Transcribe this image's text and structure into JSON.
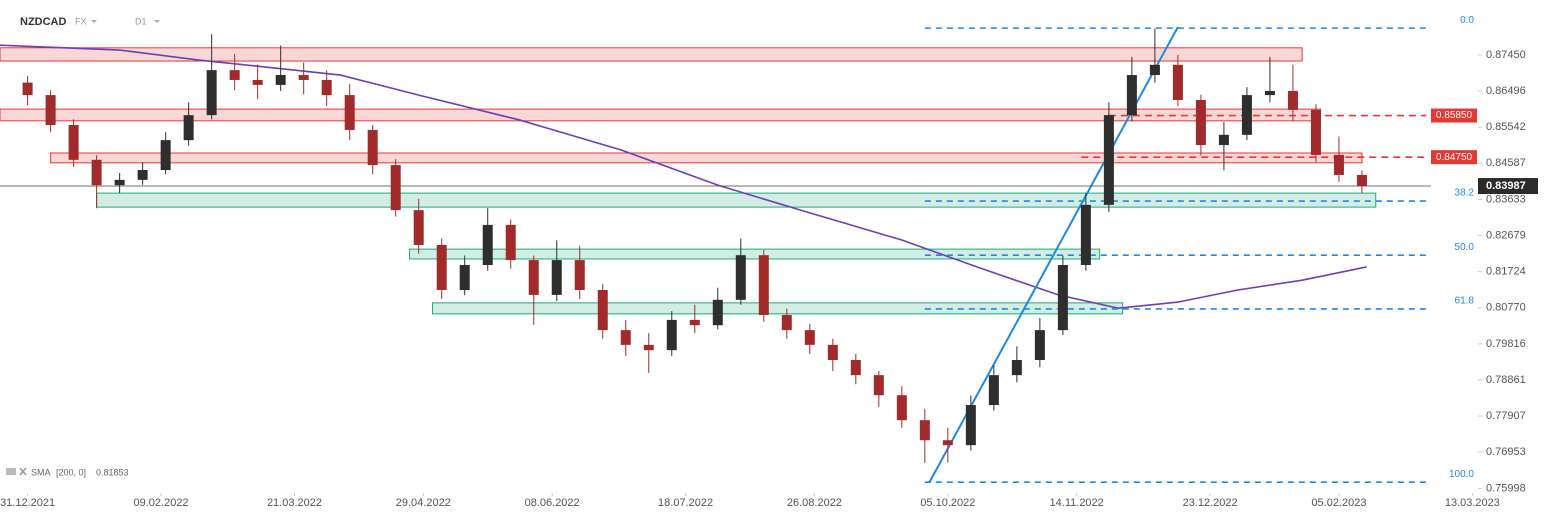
{
  "chart_data": {
    "type": "candlestick",
    "symbol": "NZDCAD",
    "market": "FX",
    "interval": "D1",
    "x": [
      0,
      5,
      10,
      15,
      20,
      25,
      30,
      35,
      40,
      45,
      50,
      55,
      60,
      65,
      70,
      75,
      80,
      85,
      90,
      95,
      100,
      105,
      110,
      115,
      120,
      125,
      130,
      135,
      140,
      145,
      150,
      155,
      160,
      165,
      170,
      175,
      180,
      185,
      190,
      195,
      200,
      205,
      210,
      215,
      220,
      225,
      230,
      235,
      240,
      245,
      250,
      255,
      260,
      265,
      270,
      275,
      280,
      285,
      290
    ],
    "open": [
      0.8672,
      0.8639,
      0.856,
      0.8468,
      0.8401,
      0.8415,
      0.8441,
      0.852,
      0.8586,
      0.8705,
      0.8679,
      0.8666,
      0.8692,
      0.8679,
      0.8639,
      0.8547,
      0.8454,
      0.8335,
      0.8243,
      0.8124,
      0.819,
      0.8296,
      0.8203,
      0.8111,
      0.8203,
      0.8124,
      0.8018,
      0.7979,
      0.7965,
      0.8045,
      0.8031,
      0.8098,
      0.8216,
      0.8058,
      0.8018,
      0.7979,
      0.7939,
      0.7899,
      0.7846,
      0.778,
      0.7727,
      0.7714,
      0.782,
      0.7899,
      0.7939,
      0.8018,
      0.819,
      0.8349,
      0.8586,
      0.8692,
      0.8719,
      0.8626,
      0.8507,
      0.8534,
      0.8639,
      0.865,
      0.86,
      0.8481,
      0.8428
    ],
    "high": [
      0.869,
      0.8652,
      0.8575,
      0.848,
      0.8433,
      0.8462,
      0.8541,
      0.862,
      0.88,
      0.8748,
      0.872,
      0.877,
      0.8725,
      0.8705,
      0.8668,
      0.856,
      0.847,
      0.8365,
      0.826,
      0.8215,
      0.834,
      0.831,
      0.8215,
      0.8255,
      0.824,
      0.814,
      0.8045,
      0.801,
      0.8068,
      0.8085,
      0.813,
      0.826,
      0.823,
      0.8075,
      0.8035,
      0.7995,
      0.7955,
      0.791,
      0.787,
      0.781,
      0.776,
      0.7845,
      0.7925,
      0.7975,
      0.805,
      0.8215,
      0.838,
      0.862,
      0.874,
      0.8815,
      0.8745,
      0.864,
      0.8568,
      0.866,
      0.874,
      0.872,
      0.8615,
      0.853,
      0.844
    ],
    "low": [
      0.8612,
      0.8541,
      0.8449,
      0.834,
      0.838,
      0.8402,
      0.843,
      0.8505,
      0.8575,
      0.8652,
      0.8628,
      0.865,
      0.8641,
      0.861,
      0.852,
      0.843,
      0.8318,
      0.822,
      0.81,
      0.811,
      0.8175,
      0.818,
      0.8032,
      0.8095,
      0.81,
      0.7995,
      0.795,
      0.7905,
      0.795,
      0.801,
      0.802,
      0.8085,
      0.804,
      0.7995,
      0.7955,
      0.791,
      0.7875,
      0.7815,
      0.776,
      0.7667,
      0.7668,
      0.77,
      0.7805,
      0.788,
      0.792,
      0.8005,
      0.8175,
      0.833,
      0.857,
      0.8672,
      0.861,
      0.848,
      0.844,
      0.852,
      0.862,
      0.857,
      0.8462,
      0.841,
      0.838
    ],
    "close": [
      0.8639,
      0.856,
      0.8468,
      0.8401,
      0.8415,
      0.8441,
      0.852,
      0.8586,
      0.8705,
      0.8679,
      0.8666,
      0.8692,
      0.8679,
      0.8639,
      0.8547,
      0.8454,
      0.8335,
      0.8243,
      0.8124,
      0.819,
      0.8296,
      0.8203,
      0.8111,
      0.8203,
      0.8124,
      0.8018,
      0.7979,
      0.7965,
      0.8045,
      0.8031,
      0.8098,
      0.8216,
      0.8058,
      0.8018,
      0.7979,
      0.7939,
      0.7899,
      0.7846,
      0.778,
      0.7727,
      0.7714,
      0.782,
      0.7899,
      0.7939,
      0.8018,
      0.819,
      0.8349,
      0.8586,
      0.8692,
      0.8719,
      0.8626,
      0.8507,
      0.8534,
      0.8639,
      0.865,
      0.86,
      0.8481,
      0.8428,
      0.83987
    ],
    "up_color": "#2e2e2e",
    "down_color": "#a12b2b",
    "xlim": [
      -6,
      330
    ],
    "xticks": [
      {
        "value": 0,
        "label": "31.12.2021"
      },
      {
        "value": 29,
        "label": "09.02.2022"
      },
      {
        "value": 58,
        "label": "21.03.2022"
      },
      {
        "value": 86,
        "label": "29.04.2022"
      },
      {
        "value": 114,
        "label": "08.06.2022"
      },
      {
        "value": 143,
        "label": "18.07.2022"
      },
      {
        "value": 171,
        "label": "26.08.2022"
      },
      {
        "value": 200,
        "label": "05.10.2022"
      },
      {
        "value": 228,
        "label": "14.11.2022"
      },
      {
        "value": 257,
        "label": "23.12.2022"
      },
      {
        "value": 285,
        "label": "05.02.2023"
      },
      {
        "value": 314,
        "label": "13.03.2023"
      }
    ],
    "ylim": [
      0.75902,
      0.88903
    ],
    "yticks": [
      {
        "value": 0.8745,
        "label": "0.87450"
      },
      0.86496,
      0.85542,
      0.84587,
      0.83633,
      0.82679,
      0.81724,
      {
        "value": 0.8077,
        "label": "0.80770"
      },
      0.79816,
      0.78861,
      0.77907,
      0.76953,
      0.75998
    ],
    "last_price": 0.83987,
    "sma": {
      "name": "SMA",
      "params": "[200, 0]",
      "value": 0.81853,
      "color": "#6b3fb8",
      "x": [
        -6,
        20,
        37,
        68,
        85,
        107,
        129,
        150,
        168,
        190,
        207,
        224,
        237,
        250,
        263,
        277,
        291
      ],
      "values": [
        0.8771,
        0.8758,
        0.8732,
        0.8692,
        0.8639,
        0.8573,
        0.8494,
        0.8401,
        0.8335,
        0.8256,
        0.8182,
        0.8111,
        0.8076,
        0.8092,
        0.8124,
        0.815,
        0.8185
      ]
    },
    "zones": [
      {
        "color": "#e53935",
        "x": [
          -6,
          277
        ],
        "y": [
          0.8729,
          0.8764
        ]
      },
      {
        "color": "#e53935",
        "x": [
          -6,
          281
        ],
        "y": [
          0.8571,
          0.8602
        ]
      },
      {
        "color": "#e53935",
        "x": [
          5,
          290
        ],
        "y": [
          0.846,
          0.8486
        ]
      },
      {
        "color": "#1fa97a",
        "x": [
          15,
          293
        ],
        "y": [
          0.8343,
          0.838
        ]
      },
      {
        "color": "#1fa97a",
        "x": [
          83,
          233
        ],
        "y": [
          0.8206,
          0.8232
        ]
      },
      {
        "color": "#1fa97a",
        "x": [
          88,
          238
        ],
        "y": [
          0.8061,
          0.809
        ]
      }
    ],
    "levels": [
      {
        "value": 0.8585,
        "label": "0.85850",
        "color": "#e53935",
        "x": [
          235,
          304
        ]
      },
      {
        "value": 0.8475,
        "label": "0.84750",
        "color": "#e53935",
        "x": [
          229,
          304
        ]
      }
    ],
    "fib": {
      "color": "#1e88e5",
      "x": [
        195,
        304
      ],
      "levels": [
        {
          "label": "0.0",
          "value": 0.8816
        },
        {
          "label": "38.2",
          "value": 0.8359
        },
        {
          "label": "50.0",
          "value": 0.8216
        },
        {
          "label": "61.8",
          "value": 0.8074
        },
        {
          "label": "100.0",
          "value": 0.7616
        }
      ]
    },
    "trendline": {
      "color": "#1e88e5",
      "x": [
        196,
        250
      ],
      "values": [
        0.7616,
        0.8819
      ]
    }
  }
}
